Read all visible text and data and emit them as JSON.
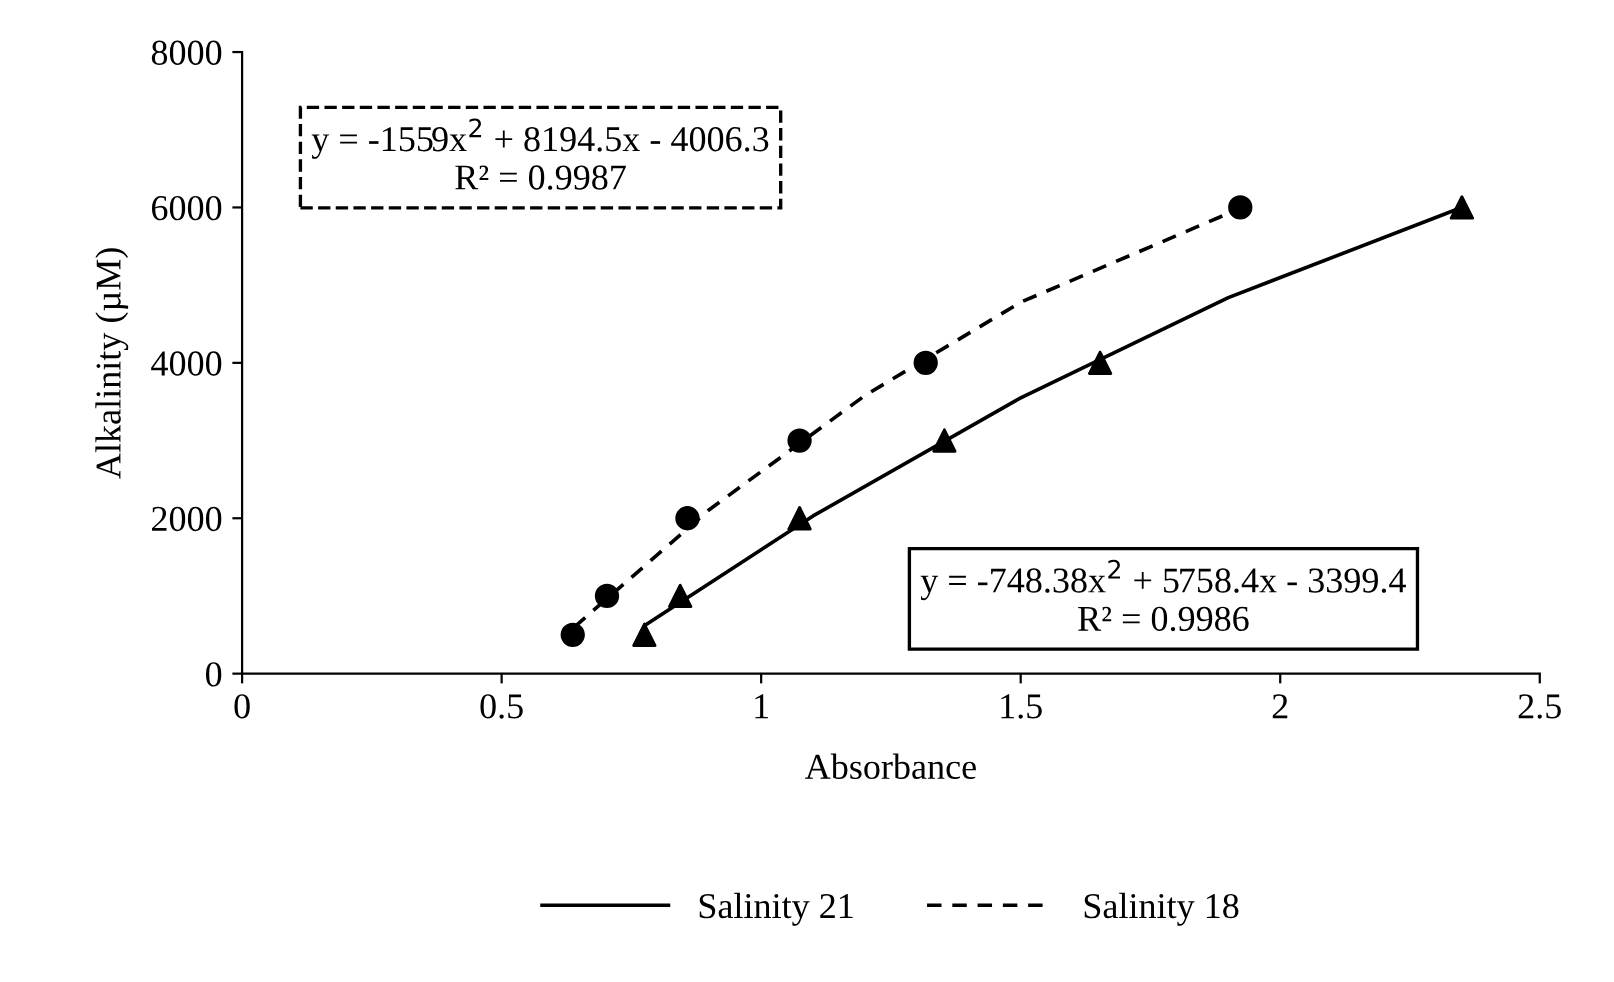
{
  "chart_data": {
    "type": "scatter",
    "xlabel": "Absorbance",
    "ylabel": "Alkalinity (µM)",
    "xlim": [
      0,
      2.5
    ],
    "xticks": [
      0,
      0.5,
      1,
      1.5,
      2,
      2.5
    ],
    "ylim": [
      0,
      8000
    ],
    "yticks": [
      0,
      2000,
      4000,
      6000,
      8000
    ],
    "grid": false,
    "legend": "bottom",
    "series": [
      {
        "name": "Salinity 21",
        "type": "line",
        "line_style": "solid",
        "marker": "none",
        "color": "#000000",
        "x": [
          0.78,
          1.1,
          1.5,
          1.9,
          2.35
        ],
        "values": [
          640,
          2030,
          3550,
          4840,
          6000
        ]
      },
      {
        "name": "Salinity 18",
        "type": "line",
        "line_style": "dashed",
        "marker": "none",
        "color": "#000000",
        "x": [
          0.64,
          0.9,
          1.2,
          1.5,
          1.92
        ],
        "values": [
          600,
          2110,
          3580,
          4780,
          5980
        ]
      },
      {
        "marker": "triangle",
        "color": "#000000",
        "x": [
          0.775,
          0.844,
          1.074,
          1.353,
          1.653,
          2.35
        ],
        "values": [
          500,
          1000,
          2000,
          3000,
          4000,
          6000
        ]
      },
      {
        "marker": "circle",
        "color": "#000000",
        "x": [
          0.637,
          0.703,
          0.858,
          1.074,
          1.317,
          1.923
        ],
        "values": [
          500,
          1000,
          2000,
          3000,
          4000,
          6000
        ]
      }
    ],
    "annotations": [
      "y = -1559x$^{2}$ + 8194.5x - 4006.3\nR² = 0.9987",
      "y = -748.38x$^{2}$ + 5758.4x - 3399.4\nR² = 0.9986"
    ]
  }
}
